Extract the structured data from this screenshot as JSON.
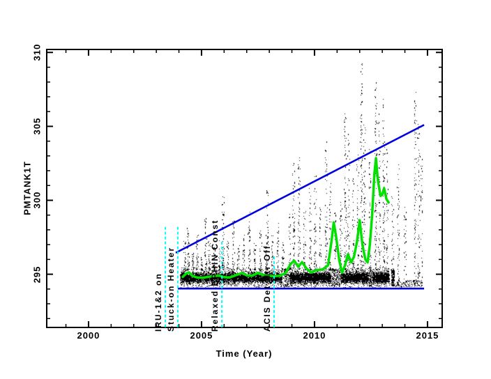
{
  "chart_data": {
    "type": "scatter",
    "title": "",
    "xlabel": "Time (Year)",
    "ylabel": "PMTANK1T",
    "xlim": [
      1998.15,
      2015.65
    ],
    "ylim": [
      291.4,
      310.2
    ],
    "x_major_ticks": [
      2000,
      2005,
      2010,
      2015
    ],
    "x_minor_step": 1,
    "y_major_ticks": [
      295,
      300,
      305,
      310
    ],
    "y_minor_step": 1,
    "grid": false,
    "legend": "none",
    "colors": {
      "points": "#000000",
      "mean_line": "#00e100",
      "limit_line": "#0000dd",
      "event_line": "#00ffff",
      "frame": "#000000"
    },
    "upper_limit_line": {
      "name": "upper-planning-limit",
      "points": [
        [
          2003.86,
          296.45
        ],
        [
          2014.85,
          305.1
        ]
      ]
    },
    "lower_limit_line": {
      "name": "lower-limit",
      "points": [
        [
          2003.95,
          294.03
        ],
        [
          2014.85,
          294.03
        ]
      ]
    },
    "mean_line": {
      "name": "running-mean",
      "points": [
        [
          2004.17,
          294.82
        ],
        [
          2004.32,
          295.05
        ],
        [
          2004.45,
          295.12
        ],
        [
          2004.6,
          294.88
        ],
        [
          2004.8,
          294.78
        ],
        [
          2005.05,
          294.76
        ],
        [
          2005.3,
          294.82
        ],
        [
          2005.55,
          294.88
        ],
        [
          2005.8,
          294.9
        ],
        [
          2006.0,
          294.8
        ],
        [
          2006.25,
          294.78
        ],
        [
          2006.55,
          294.95
        ],
        [
          2006.8,
          295.08
        ],
        [
          2007.0,
          294.92
        ],
        [
          2007.25,
          294.9
        ],
        [
          2007.5,
          295.1
        ],
        [
          2007.72,
          294.94
        ],
        [
          2007.95,
          294.9
        ],
        [
          2008.2,
          294.86
        ],
        [
          2008.45,
          294.9
        ],
        [
          2008.7,
          295.05
        ],
        [
          2008.95,
          295.7
        ],
        [
          2009.1,
          295.92
        ],
        [
          2009.28,
          295.5
        ],
        [
          2009.45,
          295.82
        ],
        [
          2009.65,
          295.38
        ],
        [
          2009.85,
          295.12
        ],
        [
          2010.1,
          295.28
        ],
        [
          2010.35,
          295.32
        ],
        [
          2010.6,
          295.6
        ],
        [
          2010.75,
          297.2
        ],
        [
          2010.85,
          298.5
        ],
        [
          2010.95,
          297.6
        ],
        [
          2011.1,
          295.9
        ],
        [
          2011.22,
          295.1
        ],
        [
          2011.35,
          295.6
        ],
        [
          2011.48,
          296.35
        ],
        [
          2011.62,
          295.8
        ],
        [
          2011.75,
          296.2
        ],
        [
          2011.88,
          297.2
        ],
        [
          2012.0,
          298.65
        ],
        [
          2012.12,
          297.0
        ],
        [
          2012.25,
          296.0
        ],
        [
          2012.35,
          295.8
        ],
        [
          2012.45,
          297.0
        ],
        [
          2012.55,
          299.0
        ],
        [
          2012.65,
          301.8
        ],
        [
          2012.72,
          302.85
        ],
        [
          2012.8,
          301.4
        ],
        [
          2012.92,
          300.3
        ],
        [
          2013.0,
          300.4
        ],
        [
          2013.08,
          300.82
        ],
        [
          2013.18,
          300.1
        ],
        [
          2013.28,
          299.85
        ]
      ]
    },
    "events": [
      {
        "label": "IRU-1&2 on",
        "year": 2003.4,
        "line_top": 298.2
      },
      {
        "label": "Stuck-on Heater",
        "year": 2003.95,
        "line_top": 298.2
      },
      {
        "label": "Relaxed EPHIN Const",
        "year": 2005.9,
        "line_top": 297.2
      },
      {
        "label": "ACIS Det Htr Off",
        "year": 2008.21,
        "line_top": 296.2
      }
    ],
    "scatter": {
      "seed": 42,
      "band_center": 294.78,
      "band_segments": [
        [
          2004.05,
          2008.55,
          5200,
          294.12,
          295.45
        ],
        [
          2008.62,
          2008.88,
          160,
          294.15,
          295.4
        ],
        [
          2008.9,
          2010.72,
          2700,
          294.12,
          295.45
        ],
        [
          2010.74,
          2011.13,
          230,
          294.15,
          295.4
        ],
        [
          2011.15,
          2012.38,
          1800,
          294.12,
          295.45
        ],
        [
          2012.4,
          2012.53,
          110,
          294.2,
          295.4
        ],
        [
          2012.55,
          2013.3,
          1150,
          294.12,
          295.45
        ],
        [
          2013.38,
          2013.52,
          170,
          294.2,
          295.3
        ],
        [
          2013.55,
          2014.75,
          140,
          294.15,
          294.6
        ]
      ],
      "streaks": [
        [
          2004.25,
          297.3,
          295.3,
          30
        ],
        [
          2004.4,
          298.2,
          295.3,
          38
        ],
        [
          2004.6,
          296.6,
          295.3,
          22
        ],
        [
          2004.8,
          297.7,
          295.3,
          30
        ],
        [
          2005.0,
          296.4,
          295.3,
          20
        ],
        [
          2005.17,
          298.9,
          295.3,
          42
        ],
        [
          2005.33,
          297.3,
          295.3,
          26
        ],
        [
          2005.55,
          296.9,
          295.3,
          24
        ],
        [
          2005.77,
          297.5,
          295.3,
          28
        ],
        [
          2005.95,
          300.3,
          295.3,
          55
        ],
        [
          2006.15,
          297.3,
          295.3,
          26
        ],
        [
          2006.4,
          298.7,
          295.3,
          36
        ],
        [
          2006.62,
          297.0,
          295.3,
          22
        ],
        [
          2006.85,
          297.7,
          295.3,
          26
        ],
        [
          2007.1,
          299.3,
          295.3,
          40
        ],
        [
          2007.35,
          297.5,
          295.3,
          26
        ],
        [
          2007.6,
          298.1,
          295.3,
          28
        ],
        [
          2007.9,
          300.7,
          295.3,
          48
        ],
        [
          2008.12,
          297.7,
          295.3,
          26
        ],
        [
          2008.35,
          298.5,
          295.3,
          30
        ],
        [
          2008.6,
          297.3,
          295.3,
          24
        ],
        [
          2008.9,
          299.1,
          295.3,
          34
        ],
        [
          2009.07,
          302.7,
          295.3,
          60
        ],
        [
          2009.3,
          303.0,
          295.3,
          60
        ],
        [
          2009.55,
          299.5,
          295.3,
          34
        ],
        [
          2009.8,
          300.9,
          295.3,
          40
        ],
        [
          2010.02,
          301.7,
          295.3,
          48
        ],
        [
          2010.25,
          299.7,
          295.3,
          30
        ],
        [
          2010.5,
          304.0,
          295.3,
          65
        ],
        [
          2010.68,
          302.1,
          295.3,
          45
        ],
        [
          2010.9,
          299.2,
          296.0,
          30
        ],
        [
          2011.15,
          300.1,
          295.3,
          34
        ],
        [
          2011.35,
          306.3,
          295.3,
          75
        ],
        [
          2011.5,
          304.6,
          295.3,
          60
        ],
        [
          2011.7,
          301.6,
          295.3,
          38
        ],
        [
          2011.9,
          303.1,
          295.3,
          44
        ],
        [
          2012.07,
          309.4,
          295.3,
          100
        ],
        [
          2012.2,
          305.1,
          295.3,
          52
        ],
        [
          2012.45,
          303.6,
          295.3,
          44
        ],
        [
          2012.7,
          308.4,
          295.3,
          90
        ],
        [
          2012.87,
          306.1,
          295.3,
          52
        ],
        [
          2013.05,
          307.1,
          295.3,
          70
        ],
        [
          2013.2,
          304.1,
          295.3,
          40
        ],
        [
          2013.45,
          300.6,
          294.25,
          45
        ],
        [
          2013.7,
          302.6,
          294.25,
          50
        ],
        [
          2014.0,
          299.6,
          294.25,
          36
        ],
        [
          2014.45,
          308.0,
          294.25,
          85
        ],
        [
          2014.6,
          305.6,
          294.25,
          55
        ],
        [
          2014.72,
          303.1,
          294.25,
          36
        ]
      ]
    }
  }
}
